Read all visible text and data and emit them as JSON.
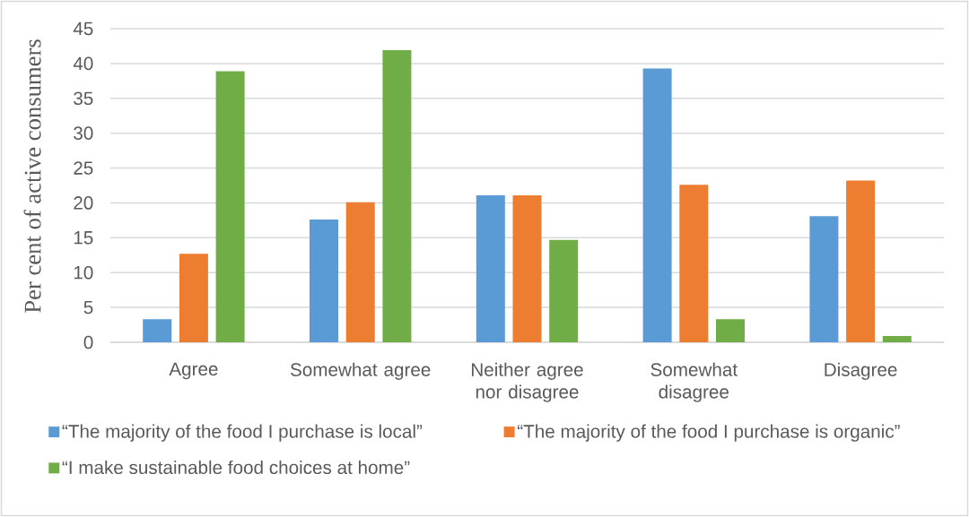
{
  "chart_data": {
    "type": "bar",
    "ylabel": "Per cent of active consumers",
    "categories": [
      "Agree",
      "Somewhat agree",
      "Neither agree nor disagree",
      "Somewhat disagree",
      "Disagree"
    ],
    "series": [
      {
        "name": "“The majority of the food I purchase is local”",
        "color": "#5b9bd5",
        "values": [
          3.3,
          17.6,
          21.1,
          39.3,
          18.1
        ]
      },
      {
        "name": "“The majority of the food I purchase is organic”",
        "color": "#ed7d31",
        "values": [
          12.7,
          20.1,
          21.1,
          22.6,
          23.2
        ]
      },
      {
        "name": "“I make sustainable food choices at home”",
        "color": "#70ad47",
        "values": [
          38.9,
          41.9,
          14.7,
          3.3,
          0.9
        ]
      }
    ],
    "ylim": [
      0,
      45
    ],
    "yticks": [
      0,
      5,
      10,
      15,
      20,
      25,
      30,
      35,
      40,
      45
    ],
    "grid": "y",
    "legend": "bottom"
  }
}
